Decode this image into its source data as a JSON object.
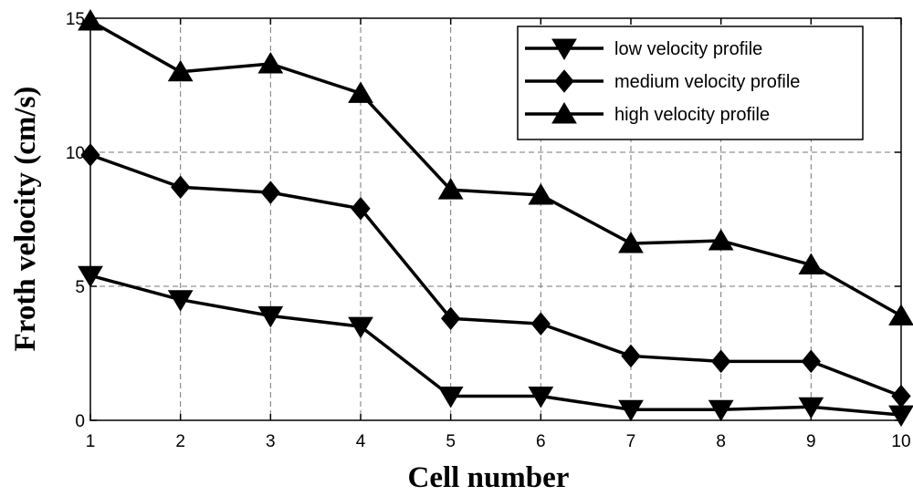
{
  "chart_data": {
    "type": "line",
    "xlabel": "Cell number",
    "ylabel": "Froth velocity (cm/s)",
    "x": [
      1,
      2,
      3,
      4,
      5,
      6,
      7,
      8,
      9,
      10
    ],
    "xlim": [
      1,
      10
    ],
    "ylim": [
      0,
      15
    ],
    "xticks": [
      "1",
      "2",
      "3",
      "4",
      "5",
      "6",
      "7",
      "8",
      "9",
      "10"
    ],
    "yticks": [
      "0",
      "5",
      "10",
      "15"
    ],
    "grid": true,
    "legend_position": "top-right",
    "series": [
      {
        "name": "low velocity profile",
        "marker": "triangle-down",
        "values": [
          5.4,
          4.5,
          3.9,
          3.5,
          0.9,
          0.9,
          0.4,
          0.4,
          0.5,
          0.2
        ]
      },
      {
        "name": "medium velocity profile",
        "marker": "diamond",
        "values": [
          9.9,
          8.7,
          8.5,
          7.9,
          3.8,
          3.6,
          2.4,
          2.2,
          2.2,
          0.9
        ]
      },
      {
        "name": "high velocity profile",
        "marker": "triangle-up",
        "values": [
          14.9,
          13.0,
          13.3,
          12.2,
          8.6,
          8.4,
          6.6,
          6.7,
          5.8,
          3.9
        ]
      }
    ]
  }
}
